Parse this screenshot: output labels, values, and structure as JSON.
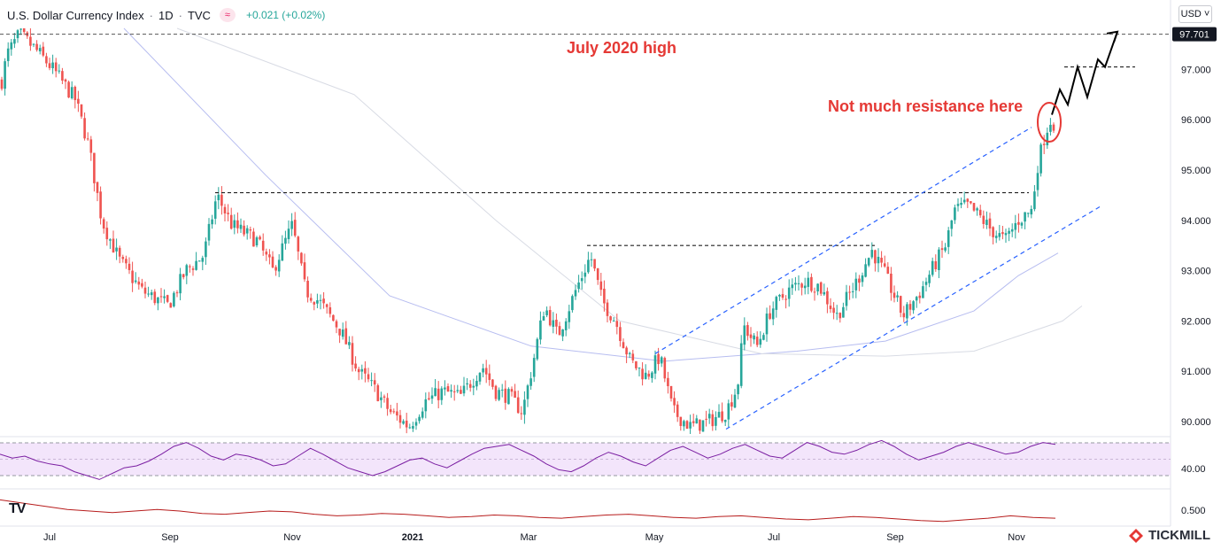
{
  "header": {
    "symbol": "U.S. Dollar Currency Index",
    "interval": "1D",
    "source": "TVC",
    "change": "+0.021 (+0.02%)"
  },
  "currency_button": "USD ˅",
  "brand": {
    "tradingview": "TV",
    "tickmill": "TICKMILL"
  },
  "chart_data": {
    "type": "candlestick",
    "price_axis": {
      "ticks": [
        90,
        91,
        92,
        93,
        94,
        95,
        96,
        97
      ],
      "tick_labels": [
        "90.000",
        "91.000",
        "92.000",
        "93.000",
        "94.000",
        "95.000",
        "96.000",
        "97.000"
      ],
      "range": [
        89.75,
        97.95
      ]
    },
    "last_price_label": "97.701",
    "time_axis": {
      "labels": [
        "Jul",
        "Sep",
        "Nov",
        "2021",
        "Mar",
        "May",
        "Jul",
        "Sep",
        "Nov"
      ],
      "bold": [
        false,
        false,
        false,
        true,
        false,
        false,
        false,
        false,
        false
      ]
    },
    "price_path": [
      [
        0,
        96.6
      ],
      [
        8,
        97.3
      ],
      [
        22,
        97.7
      ],
      [
        40,
        97.4
      ],
      [
        60,
        97.0
      ],
      [
        85,
        96.4
      ],
      [
        100,
        95.5
      ],
      [
        115,
        94.0
      ],
      [
        135,
        93.2
      ],
      [
        160,
        92.6
      ],
      [
        190,
        92.3
      ],
      [
        210,
        93.0
      ],
      [
        230,
        93.3
      ],
      [
        245,
        94.5
      ],
      [
        262,
        93.9
      ],
      [
        290,
        93.6
      ],
      [
        308,
        93.0
      ],
      [
        330,
        93.9
      ],
      [
        345,
        92.6
      ],
      [
        360,
        92.4
      ],
      [
        385,
        91.8
      ],
      [
        405,
        91.0
      ],
      [
        425,
        90.6
      ],
      [
        440,
        90.2
      ],
      [
        462,
        89.9
      ],
      [
        480,
        90.4
      ],
      [
        500,
        90.6
      ],
      [
        520,
        90.5
      ],
      [
        545,
        91.1
      ],
      [
        560,
        90.6
      ],
      [
        575,
        90.5
      ],
      [
        590,
        90.2
      ],
      [
        600,
        91.0
      ],
      [
        615,
        92.3
      ],
      [
        630,
        91.7
      ],
      [
        650,
        92.6
      ],
      [
        667,
        93.3
      ],
      [
        680,
        92.4
      ],
      [
        695,
        92.0
      ],
      [
        712,
        91.2
      ],
      [
        730,
        90.9
      ],
      [
        745,
        91.3
      ],
      [
        760,
        90.2
      ],
      [
        780,
        89.9
      ],
      [
        800,
        90.0
      ],
      [
        820,
        90.2
      ],
      [
        833,
        90.7
      ],
      [
        840,
        91.9
      ],
      [
        855,
        91.5
      ],
      [
        870,
        92.2
      ],
      [
        890,
        92.6
      ],
      [
        910,
        92.8
      ],
      [
        925,
        92.7
      ],
      [
        945,
        92.1
      ],
      [
        965,
        92.7
      ],
      [
        985,
        93.4
      ],
      [
        1000,
        92.9
      ],
      [
        1020,
        92.1
      ],
      [
        1040,
        92.6
      ],
      [
        1055,
        93.1
      ],
      [
        1068,
        93.5
      ],
      [
        1078,
        94.2
      ],
      [
        1092,
        94.3
      ],
      [
        1105,
        94.1
      ],
      [
        1120,
        93.8
      ],
      [
        1135,
        93.6
      ],
      [
        1150,
        94.0
      ],
      [
        1165,
        94.2
      ],
      [
        1172,
        95.1
      ],
      [
        1180,
        95.7
      ],
      [
        1186,
        96.0
      ],
      [
        1192,
        95.9
      ]
    ],
    "annotations": {
      "july_high_label": "July 2020 high",
      "resistance_label": "Not much resistance here",
      "july_high_level": 97.7,
      "level_1": 94.55,
      "level_2": 93.5,
      "level_3": 97.05
    },
    "channel": {
      "upper": [
        [
          740,
          91.35
        ],
        [
          1165,
          95.85
        ]
      ],
      "lower": [
        [
          820,
          89.85
        ],
        [
          1245,
          94.3
        ]
      ]
    },
    "moving_averages": [
      {
        "color": "#b7bdf0",
        "points": [
          [
            140,
            97.95
          ],
          [
            300,
            94.9
          ],
          [
            440,
            92.5
          ],
          [
            600,
            91.5
          ],
          [
            750,
            91.2
          ],
          [
            900,
            91.4
          ],
          [
            1000,
            91.6
          ],
          [
            1100,
            92.2
          ],
          [
            1150,
            92.9
          ],
          [
            1195,
            93.35
          ]
        ]
      },
      {
        "color": "#d8dbe4",
        "points": [
          [
            200,
            97.95
          ],
          [
            400,
            96.5
          ],
          [
            560,
            94.0
          ],
          [
            700,
            92.0
          ],
          [
            860,
            91.35
          ],
          [
            1000,
            91.3
          ],
          [
            1100,
            91.4
          ],
          [
            1200,
            92.0
          ],
          [
            1222,
            92.3
          ]
        ]
      }
    ],
    "projection_points": [
      [
        1188,
        96.1
      ],
      [
        1197,
        96.6
      ],
      [
        1206,
        96.3
      ],
      [
        1217,
        97.05
      ],
      [
        1228,
        96.45
      ],
      [
        1240,
        97.2
      ],
      [
        1248,
        97.05
      ],
      [
        1262,
        97.75
      ]
    ],
    "rsi": {
      "value_label": "40.00",
      "series": [
        62,
        58,
        60,
        55,
        52,
        50,
        44,
        40,
        36,
        42,
        48,
        50,
        55,
        62,
        70,
        74,
        68,
        60,
        56,
        62,
        60,
        56,
        50,
        52,
        60,
        68,
        62,
        55,
        48,
        44,
        40,
        44,
        50,
        56,
        58,
        52,
        48,
        55,
        62,
        68,
        70,
        72,
        66,
        60,
        52,
        46,
        44,
        50,
        58,
        64,
        60,
        54,
        50,
        58,
        66,
        70,
        64,
        58,
        62,
        68,
        72,
        66,
        60,
        58,
        66,
        74,
        70,
        64,
        62,
        66,
        72,
        76,
        70,
        62,
        56,
        60,
        64,
        70,
        74,
        70,
        66,
        62,
        64,
        70,
        74,
        72
      ]
    },
    "second_indicator": {
      "value_label": "0.500",
      "series": [
        0.64,
        0.6,
        0.56,
        0.52,
        0.5,
        0.48,
        0.5,
        0.52,
        0.5,
        0.47,
        0.46,
        0.48,
        0.5,
        0.49,
        0.46,
        0.44,
        0.45,
        0.47,
        0.46,
        0.44,
        0.42,
        0.43,
        0.45,
        0.44,
        0.42,
        0.41,
        0.43,
        0.45,
        0.46,
        0.44,
        0.42,
        0.41,
        0.43,
        0.44,
        0.42,
        0.4,
        0.39,
        0.41,
        0.43,
        0.42,
        0.4,
        0.38,
        0.37,
        0.39,
        0.41,
        0.44,
        0.42,
        0.41
      ]
    }
  },
  "colors": {
    "up": "#26a69a",
    "down": "#ef5350",
    "annotation": "#e53935",
    "channel": "#2962ff",
    "rsi_line": "#7b1fa2",
    "rsi_band": "#f3e5fb",
    "indicator_line": "#b71c1c"
  }
}
